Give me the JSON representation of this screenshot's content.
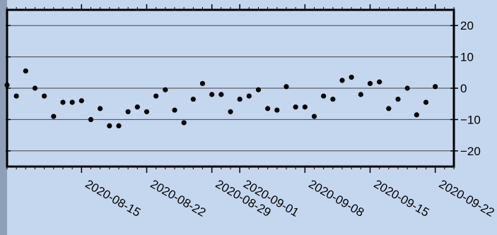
{
  "chart_data": {
    "type": "scatter",
    "title": "",
    "xlabel": "",
    "ylabel": "",
    "x_axis": {
      "type": "date",
      "range": [
        "2020-08-07",
        "2020-09-24"
      ],
      "tick_labels": [
        "2020-08-15",
        "2020-08-22",
        "2020-08-29",
        "2020-09-01",
        "2020-09-08",
        "2020-09-15",
        "2020-09-22"
      ]
    },
    "y_axis": {
      "range": [
        -25,
        25
      ],
      "tick_values": [
        20,
        10,
        0,
        -10,
        -20
      ],
      "tick_labels": [
        "20",
        "10",
        "0",
        "−10",
        "−20"
      ]
    },
    "grid": true,
    "colors": {
      "background": "#c5d6ef",
      "points": "#000000",
      "frame": "#000000",
      "gridline": "#444444"
    },
    "points": [
      {
        "x": "2020-08-07",
        "y": 1
      },
      {
        "x": "2020-08-08",
        "y": -2.5
      },
      {
        "x": "2020-08-09",
        "y": 5.5
      },
      {
        "x": "2020-08-10",
        "y": 0
      },
      {
        "x": "2020-08-11",
        "y": -2.5
      },
      {
        "x": "2020-08-12",
        "y": -9
      },
      {
        "x": "2020-08-13",
        "y": -4.5
      },
      {
        "x": "2020-08-14",
        "y": -4.5
      },
      {
        "x": "2020-08-15",
        "y": -4
      },
      {
        "x": "2020-08-16",
        "y": -10
      },
      {
        "x": "2020-08-17",
        "y": -6.5
      },
      {
        "x": "2020-08-18",
        "y": -12
      },
      {
        "x": "2020-08-19",
        "y": -12
      },
      {
        "x": "2020-08-20",
        "y": -7.5
      },
      {
        "x": "2020-08-21",
        "y": -6
      },
      {
        "x": "2020-08-22",
        "y": -7.5
      },
      {
        "x": "2020-08-23",
        "y": -2.5
      },
      {
        "x": "2020-08-24",
        "y": -0.5
      },
      {
        "x": "2020-08-25",
        "y": -7
      },
      {
        "x": "2020-08-26",
        "y": -11
      },
      {
        "x": "2020-08-27",
        "y": -3.5
      },
      {
        "x": "2020-08-28",
        "y": 1.5
      },
      {
        "x": "2020-08-29",
        "y": -2
      },
      {
        "x": "2020-08-30",
        "y": -2
      },
      {
        "x": "2020-08-31",
        "y": -7.5
      },
      {
        "x": "2020-09-01",
        "y": -3.5
      },
      {
        "x": "2020-09-02",
        "y": -2.5
      },
      {
        "x": "2020-09-03",
        "y": -0.5
      },
      {
        "x": "2020-09-04",
        "y": -6.5
      },
      {
        "x": "2020-09-05",
        "y": -7
      },
      {
        "x": "2020-09-06",
        "y": 0.5
      },
      {
        "x": "2020-09-07",
        "y": -6
      },
      {
        "x": "2020-09-08",
        "y": -6
      },
      {
        "x": "2020-09-09",
        "y": -9
      },
      {
        "x": "2020-09-10",
        "y": -2.5
      },
      {
        "x": "2020-09-11",
        "y": -3.5
      },
      {
        "x": "2020-09-12",
        "y": 2.5
      },
      {
        "x": "2020-09-13",
        "y": 3.5
      },
      {
        "x": "2020-09-14",
        "y": -2
      },
      {
        "x": "2020-09-15",
        "y": 1.5
      },
      {
        "x": "2020-09-16",
        "y": 2
      },
      {
        "x": "2020-09-17",
        "y": -6.5
      },
      {
        "x": "2020-09-18",
        "y": -3.5
      },
      {
        "x": "2020-09-19",
        "y": 0
      },
      {
        "x": "2020-09-20",
        "y": -8.5
      },
      {
        "x": "2020-09-21",
        "y": -4.5
      },
      {
        "x": "2020-09-22",
        "y": 0.5
      }
    ]
  }
}
